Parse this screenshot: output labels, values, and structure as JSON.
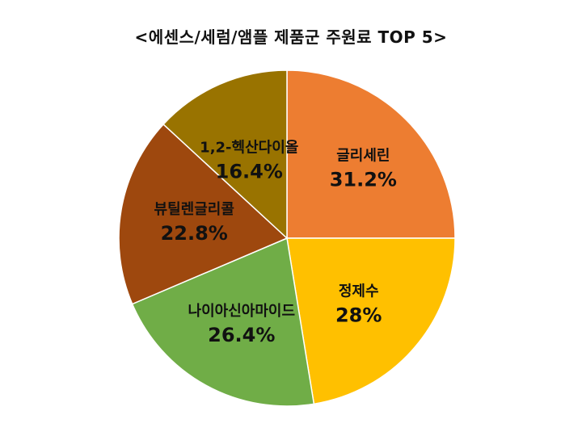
{
  "chart_data": {
    "type": "pie",
    "title": "<에센스/세럼/앰플 제품군 주원료 TOP 5>",
    "start_angle_deg": 0,
    "direction": "clockwise",
    "slices": [
      {
        "label": "글리세린",
        "value": 31.2,
        "display": "31.2%",
        "color": "#ed7d31"
      },
      {
        "label": "정제수",
        "value": 28,
        "display": "28%",
        "color": "#ffc000"
      },
      {
        "label": "나이아신아마이드",
        "value": 26.4,
        "display": "26.4%",
        "color": "#70ad47"
      },
      {
        "label": "뷰틸렌글리콜",
        "value": 22.8,
        "display": "22.8%",
        "color": "#9e480e"
      },
      {
        "label": "1,2-헥산다이올",
        "value": 16.4,
        "display": "16.4%",
        "color": "#997300"
      }
    ]
  }
}
